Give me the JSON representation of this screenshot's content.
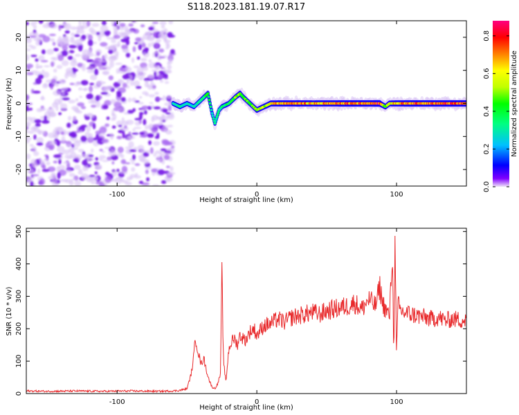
{
  "title": "S118.2023.181.19.07.R17",
  "chart_data": [
    {
      "type": "heatmap",
      "xlabel": "Height of straight line (km)",
      "ylabel": "Frequency (Hz)",
      "xlim": [
        -165,
        150
      ],
      "ylim": [
        -25,
        25
      ],
      "xticks": [
        -100,
        0,
        100
      ],
      "yticks": [
        -20,
        -10,
        0,
        10,
        20
      ],
      "colorbar": {
        "label": "Normalized spectral amplitude",
        "range": [
          0,
          0.88
        ],
        "ticks": [
          0.0,
          0.2,
          0.4,
          0.6,
          0.8
        ],
        "colormap": [
          "#f0e6f8",
          "#8000ff",
          "#0000ff",
          "#00c0ff",
          "#00ff80",
          "#00ff00",
          "#c0ff00",
          "#ffff00",
          "#ff8000",
          "#ff0000",
          "#ff0080"
        ]
      },
      "noise_region": {
        "x_range": [
          -165,
          -60
        ],
        "level": "low (0.0-0.15)"
      },
      "signal_trace": {
        "x": [
          -60,
          -55,
          -50,
          -45,
          -40,
          -35,
          -32,
          -30,
          -27,
          -25,
          -20,
          -15,
          -12,
          -10,
          -5,
          0,
          5,
          10,
          20,
          30,
          40,
          50,
          60,
          70,
          80,
          88,
          92,
          95,
          100,
          110,
          120,
          130,
          140,
          150
        ],
        "frequency": [
          0,
          -1,
          0,
          -1,
          1,
          3,
          -3,
          -6,
          -2,
          -1,
          0,
          2,
          3,
          2,
          0,
          -2,
          -1,
          0,
          0,
          0,
          0,
          0,
          0,
          0,
          0,
          0,
          -1,
          0,
          0,
          0,
          0,
          0,
          0,
          0
        ],
        "amplitude": [
          0.3,
          0.35,
          0.3,
          0.3,
          0.35,
          0.45,
          0.3,
          0.35,
          0.35,
          0.35,
          0.4,
          0.55,
          0.6,
          0.5,
          0.5,
          0.55,
          0.6,
          0.7,
          0.75,
          0.78,
          0.72,
          0.75,
          0.78,
          0.8,
          0.8,
          0.85,
          0.5,
          0.65,
          0.75,
          0.8,
          0.82,
          0.8,
          0.82,
          0.8
        ]
      }
    },
    {
      "type": "line",
      "xlabel": "Height of straight line (km)",
      "ylabel": "SNR (10 * v/v)",
      "xlim": [
        -165,
        150
      ],
      "ylim": [
        0,
        510
      ],
      "xticks": [
        -100,
        0,
        100
      ],
      "yticks": [
        0,
        100,
        200,
        300,
        400,
        500
      ],
      "color": "#e8282a",
      "series": [
        {
          "x": [
            -165,
            -150,
            -130,
            -110,
            -90,
            -70,
            -60,
            -55,
            -50,
            -47,
            -45,
            -44,
            -42,
            -40,
            -38,
            -36,
            -34,
            -32,
            -30,
            -28,
            -26,
            -25,
            -24,
            -23,
            -22,
            -21,
            -20,
            -18,
            -16,
            -14,
            -12,
            -10,
            -8,
            -5,
            -2,
            0,
            5,
            10,
            15,
            20,
            25,
            30,
            35,
            40,
            45,
            50,
            55,
            60,
            65,
            70,
            75,
            80,
            85,
            88,
            90,
            92,
            95,
            97,
            98,
            99,
            100,
            101,
            102,
            105,
            110,
            115,
            120,
            125,
            130,
            135,
            140,
            145,
            150
          ],
          "y": [
            8,
            7,
            8,
            7,
            8,
            7,
            8,
            10,
            15,
            60,
            120,
            175,
            130,
            90,
            110,
            70,
            40,
            20,
            15,
            30,
            60,
            380,
            120,
            60,
            40,
            90,
            140,
            160,
            170,
            150,
            180,
            170,
            165,
            190,
            200,
            180,
            210,
            215,
            230,
            220,
            235,
            240,
            245,
            250,
            245,
            255,
            260,
            265,
            270,
            280,
            260,
            290,
            270,
            330,
            280,
            260,
            240,
            440,
            120,
            490,
            110,
            280,
            260,
            250,
            245,
            240,
            235,
            230,
            235,
            225,
            230,
            228,
            225
          ]
        }
      ]
    }
  ]
}
